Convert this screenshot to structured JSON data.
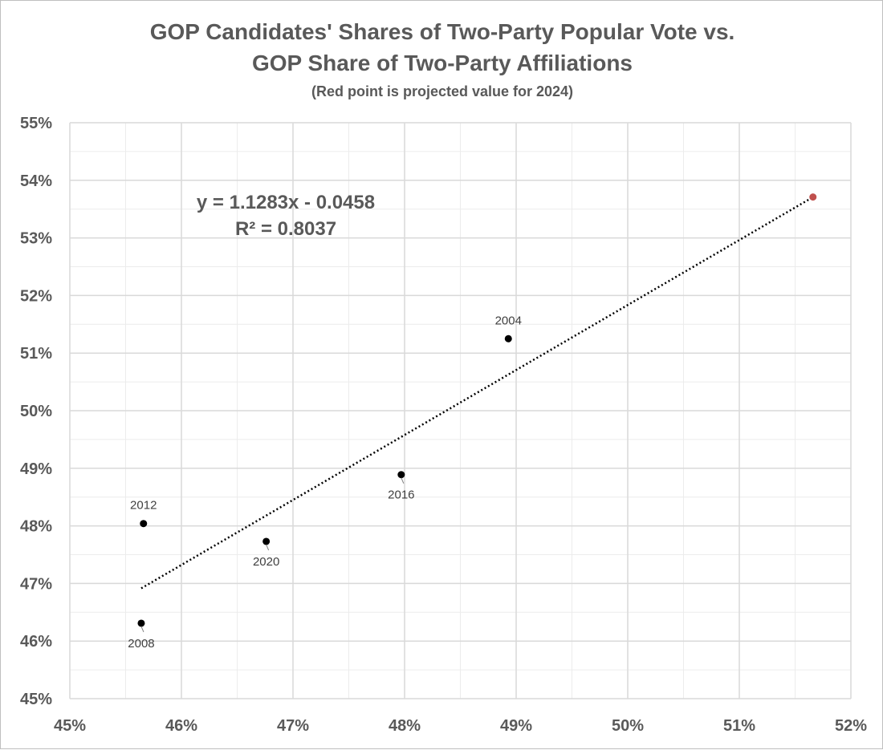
{
  "chart_data": {
    "type": "scatter",
    "title": "GOP Candidates' Shares of Two-Party Popular Vote vs.",
    "title_line2": "GOP Share of Two-Party Affiliations",
    "subtitle": "(Red point is projected value for 2024)",
    "xlabel": "",
    "ylabel": "",
    "xlim": [
      45,
      52
    ],
    "ylim": [
      45,
      55
    ],
    "x_ticks": [
      45,
      46,
      47,
      48,
      49,
      50,
      51,
      52
    ],
    "y_ticks": [
      45,
      46,
      47,
      48,
      49,
      50,
      51,
      52,
      53,
      54,
      55
    ],
    "x_tick_labels": [
      "45%",
      "46%",
      "47%",
      "48%",
      "49%",
      "50%",
      "51%",
      "52%"
    ],
    "y_tick_labels": [
      "45%",
      "46%",
      "47%",
      "48%",
      "49%",
      "50%",
      "51%",
      "52%",
      "53%",
      "54%",
      "55%"
    ],
    "grid": true,
    "minor_grid": true,
    "points": [
      {
        "label": "2004",
        "x": 48.93,
        "y": 51.25,
        "color": "#000000"
      },
      {
        "label": "2008",
        "x": 45.64,
        "y": 46.31,
        "color": "#000000"
      },
      {
        "label": "2012",
        "x": 45.66,
        "y": 48.04,
        "color": "#000000"
      },
      {
        "label": "2016",
        "x": 47.97,
        "y": 48.89,
        "color": "#000000"
      },
      {
        "label": "2020",
        "x": 46.76,
        "y": 47.73,
        "color": "#000000"
      },
      {
        "label": "",
        "x": 51.66,
        "y": 53.71,
        "color": "#c0504d"
      }
    ],
    "trendline": {
      "style": "dotted",
      "x_range": [
        45.64,
        51.66
      ],
      "slope": 1.1283,
      "intercept": -4.58,
      "equation": "y = 1.1283x - 0.0458",
      "r_squared": "R² = 0.8037"
    }
  },
  "colors": {
    "text": "#595959",
    "grid": "#d9d9d9",
    "point": "#000000",
    "projected": "#c0504d"
  }
}
